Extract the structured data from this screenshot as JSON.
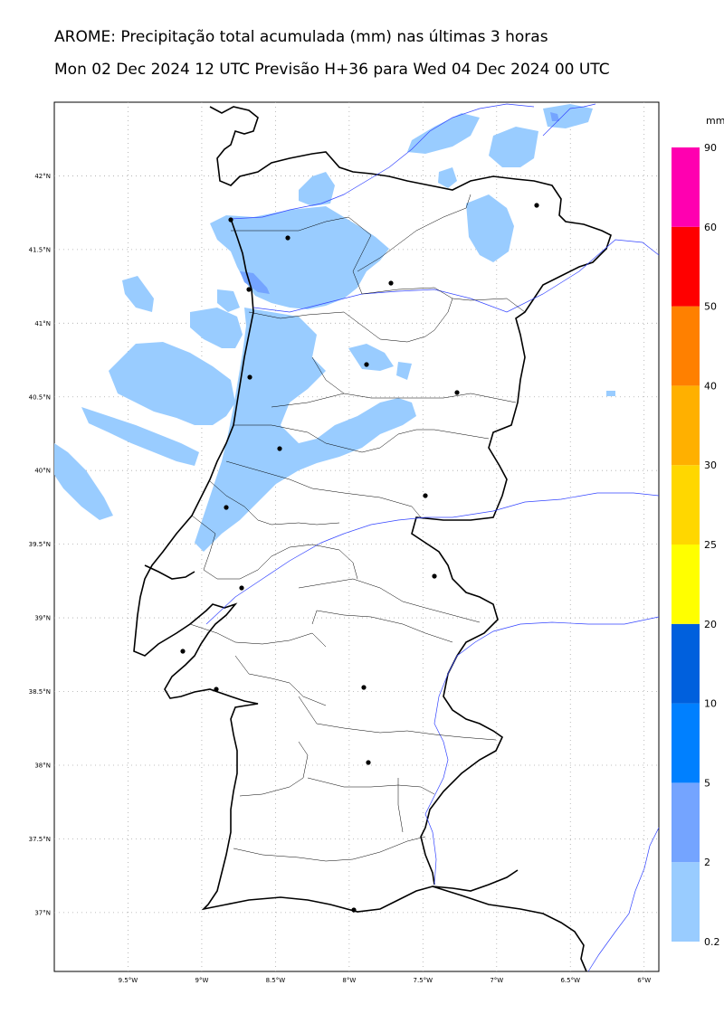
{
  "title_line1": "AROME: Precipitação total acumulada (mm) nas últimas 3 horas",
  "title_line2": "Mon 02 Dec 2024 12 UTC Previsão H+36 para Wed 04 Dec 2024 00 UTC",
  "colorbar": {
    "unit": "mm",
    "levels": [
      {
        "value": "0.2",
        "color": "#99ccff"
      },
      {
        "value": "2",
        "color": "#74a4ff"
      },
      {
        "value": "5",
        "color": "#0080ff"
      },
      {
        "value": "10",
        "color": "#0060dd"
      },
      {
        "value": "20",
        "color": "#ffff00"
      },
      {
        "value": "25",
        "color": "#ffd700"
      },
      {
        "value": "30",
        "color": "#ffb000"
      },
      {
        "value": "40",
        "color": "#ff8000"
      },
      {
        "value": "50",
        "color": "#ff0000"
      },
      {
        "value": "60",
        "color": "#ff00b0"
      },
      {
        "value": "90",
        "color": ""
      }
    ]
  },
  "lat_labels": [
    "42°N",
    "41.5°N",
    "41°N",
    "40.5°N",
    "40°N",
    "39.5°N",
    "39°N",
    "38.5°N",
    "38°N",
    "37.5°N",
    "37°N"
  ],
  "lon_labels": [
    "9.5°W",
    "9°W",
    "8.5°W",
    "8°W",
    "7.5°W",
    "7°W",
    "6.5°W",
    "6°W"
  ],
  "lat_values": [
    42,
    41.5,
    41,
    40.5,
    40,
    39.5,
    39,
    38.5,
    38,
    37.5,
    37
  ],
  "lon_values": [
    -9.5,
    -9,
    -8.5,
    -8,
    -7.5,
    -7,
    -6.5,
    -6
  ],
  "map_extent": {
    "lon": [
      -10.0,
      -5.9
    ],
    "lat": [
      36.6,
      42.5
    ]
  }
}
